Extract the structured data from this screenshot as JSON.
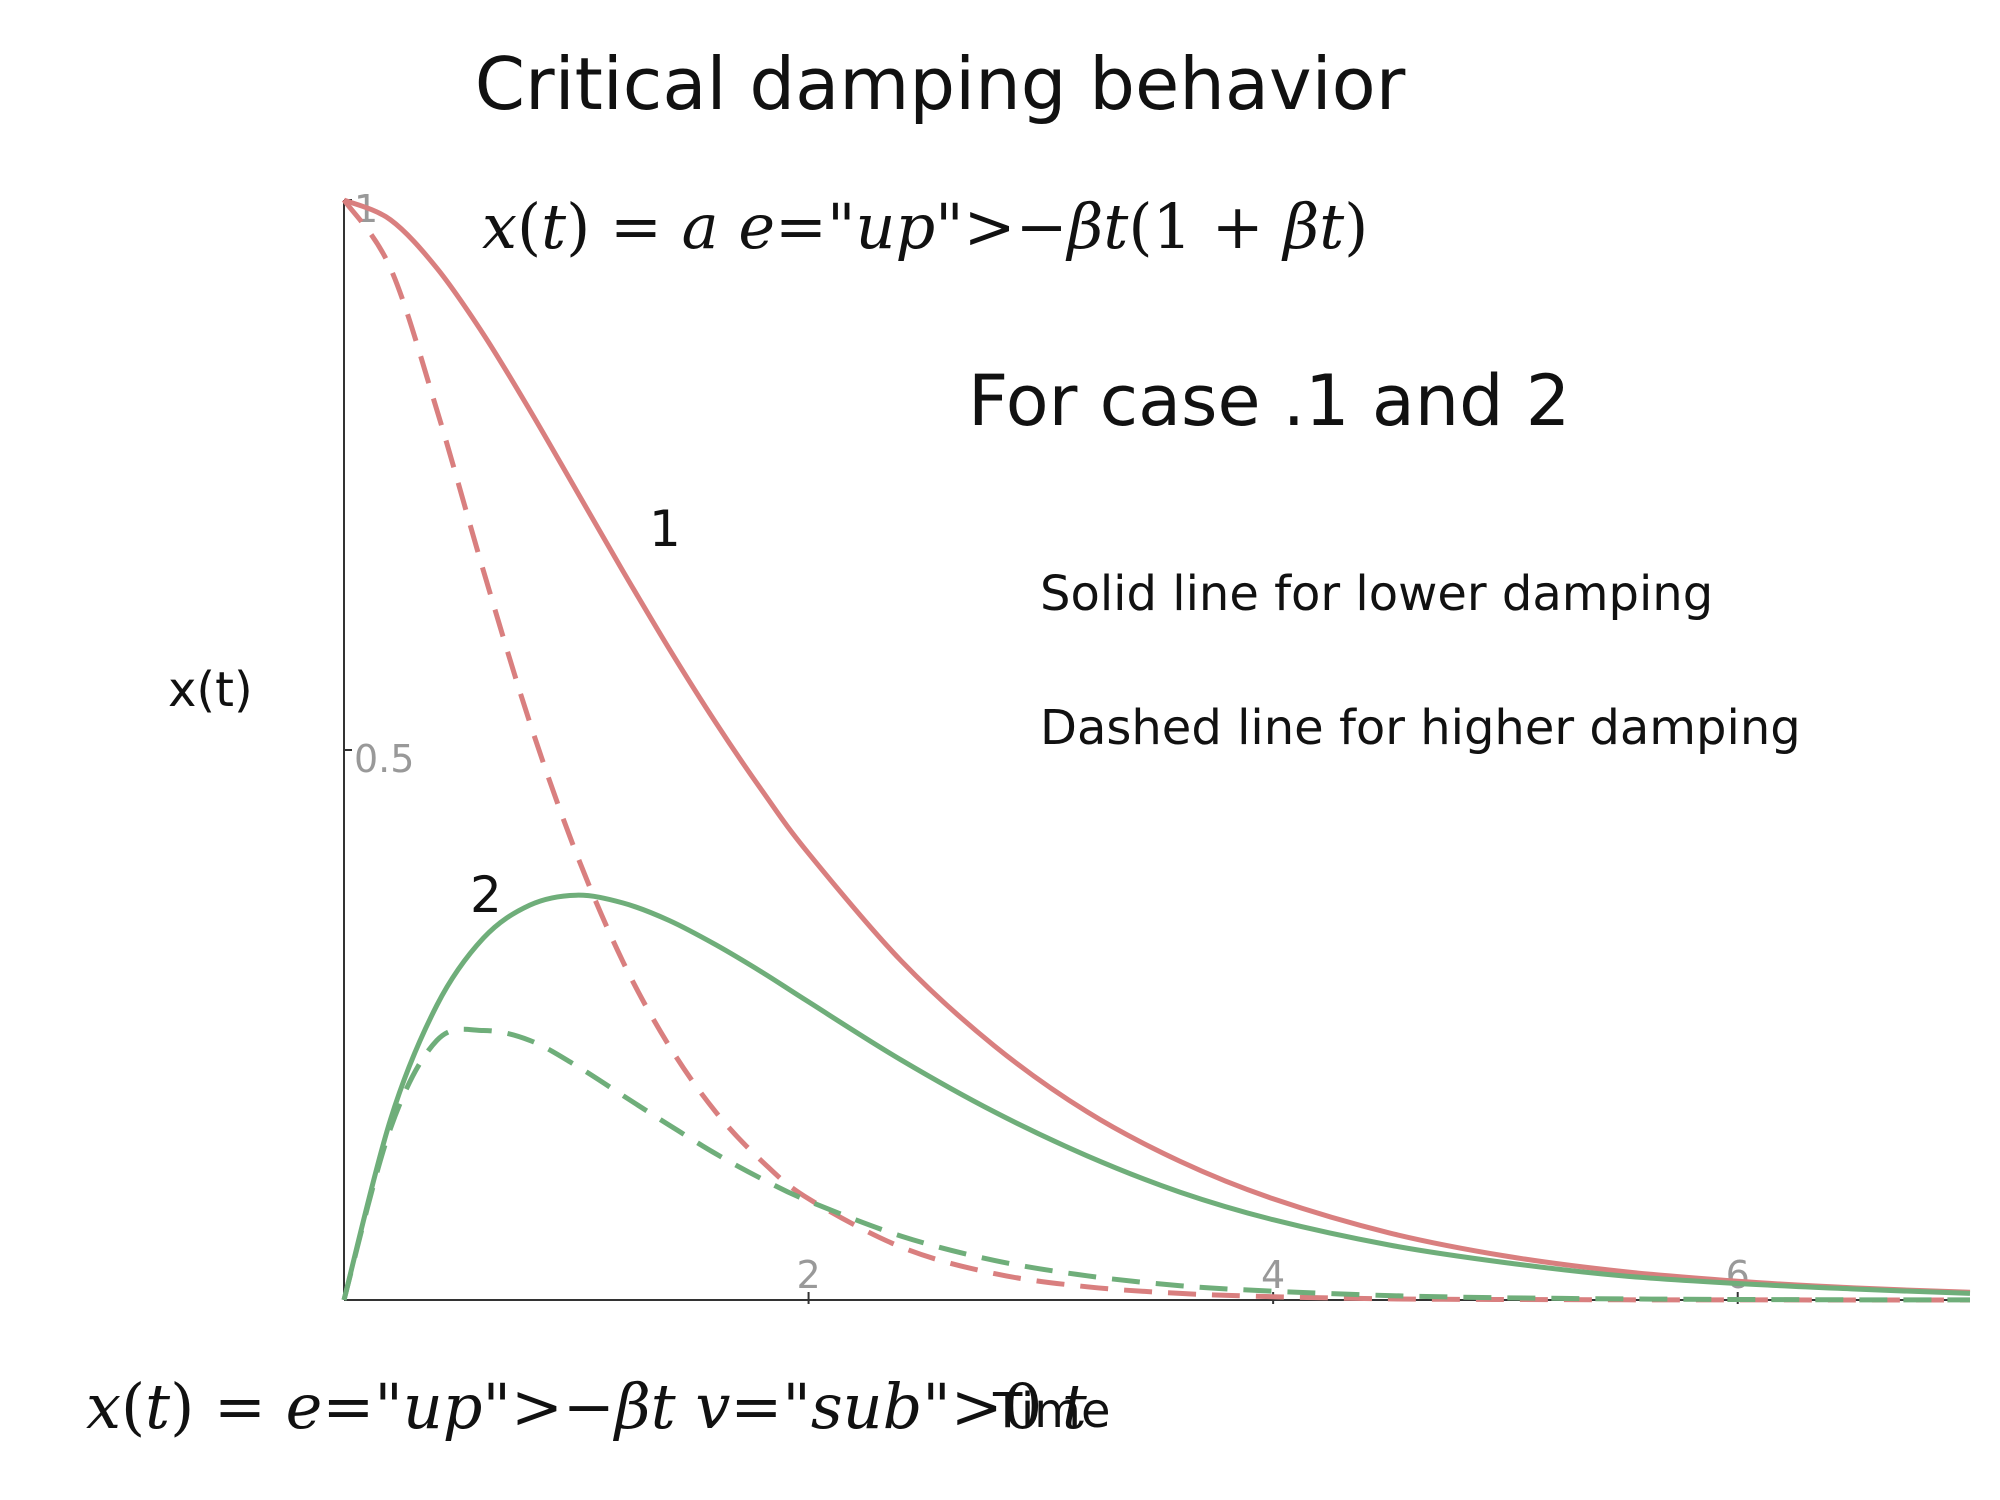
{
  "title": "Critical damping behavior",
  "formulas": {
    "top": "x(t) = a e^{-βt}(1 + βt)",
    "bottom": "x(t) = e^{-βt} v_0 t"
  },
  "annotations": {
    "case_heading": "For case .1 and 2",
    "solid_note": "Solid line for lower damping",
    "dashed_note": "Dashed line for higher damping",
    "curve_1_label": "1",
    "curve_2_label": "2"
  },
  "colors": {
    "case_1": "#d97f7f",
    "case_2": "#6fae7a",
    "axis": "#333333",
    "tick_text": "#999999"
  },
  "chart_data": {
    "type": "line",
    "title": "",
    "xlabel": "Time",
    "ylabel": "x(t)",
    "xlim": [
      0,
      7
    ],
    "ylim": [
      0,
      1
    ],
    "x_ticks": [
      2,
      4,
      6
    ],
    "x_tick_labels": [
      "2",
      "4",
      "6"
    ],
    "y_ticks": [
      0.5,
      1
    ],
    "y_tick_labels": [
      "0.5",
      "1"
    ],
    "grid": false,
    "legend": "none",
    "x": [
      0,
      0.2,
      0.4,
      0.6,
      0.8,
      1.0,
      1.2,
      1.4,
      1.6,
      1.8,
      2.0,
      2.4,
      2.8,
      3.2,
      3.6,
      4.0,
      4.5,
      5.0,
      5.5,
      6.0,
      6.5,
      7.0
    ],
    "series": [
      {
        "case": "1",
        "style": "solid",
        "values": [
          1.0,
          0.982,
          0.938,
          0.878,
          0.809,
          0.736,
          0.663,
          0.592,
          0.525,
          0.463,
          0.406,
          0.308,
          0.231,
          0.171,
          0.126,
          0.092,
          0.061,
          0.04,
          0.026,
          0.017,
          0.011,
          0.007
        ]
      },
      {
        "case": "1",
        "style": "dashed",
        "values": [
          1.0,
          0.938,
          0.809,
          0.663,
          0.525,
          0.406,
          0.308,
          0.231,
          0.171,
          0.126,
          0.092,
          0.048,
          0.024,
          0.012,
          0.006,
          0.003,
          0.001,
          0.0005,
          0.0002,
          0.0001,
          0.0,
          0.0
        ]
      },
      {
        "case": "2",
        "style": "solid",
        "values": [
          0.0,
          0.164,
          0.268,
          0.329,
          0.359,
          0.368,
          0.361,
          0.345,
          0.323,
          0.298,
          0.271,
          0.218,
          0.171,
          0.131,
          0.098,
          0.073,
          0.05,
          0.034,
          0.022,
          0.015,
          0.01,
          0.006
        ]
      },
      {
        "case": "2",
        "style": "dashed",
        "values": [
          0.0,
          0.156,
          0.236,
          0.245,
          0.236,
          0.213,
          0.186,
          0.159,
          0.133,
          0.11,
          0.09,
          0.058,
          0.036,
          0.022,
          0.013,
          0.008,
          0.004,
          0.002,
          0.001,
          0.0005,
          0.0002,
          0.0001
        ]
      }
    ]
  }
}
